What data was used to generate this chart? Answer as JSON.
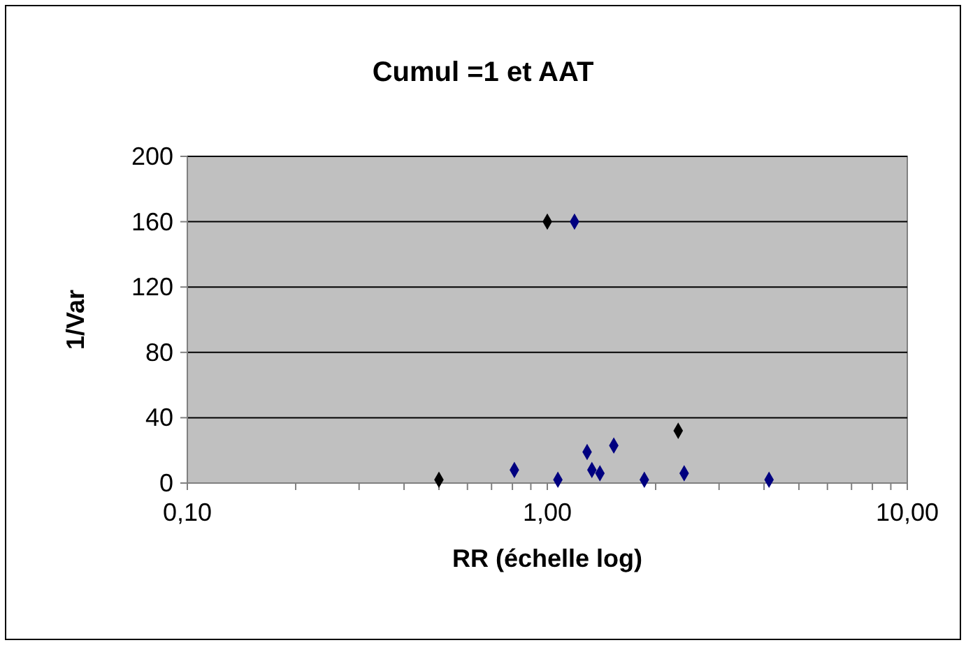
{
  "chart_data": {
    "type": "scatter",
    "title": "Cumul =1 et AAT",
    "xlabel": "RR (échelle log)",
    "ylabel": "1/Var",
    "log": "x",
    "x": [
      0.5,
      0.81,
      1.0,
      1.19,
      1.07,
      1.29,
      1.33,
      1.4,
      1.53,
      1.86,
      2.31,
      2.4,
      4.13
    ],
    "values": [
      2,
      8,
      160,
      160,
      2,
      19,
      8,
      6,
      23,
      2,
      32,
      6,
      2
    ],
    "colors": [
      "#000000",
      "#000080",
      "#000000",
      "#000080",
      "#000080",
      "#000080",
      "#000080",
      "#000080",
      "#000080",
      "#000080",
      "#000000",
      "#000080",
      "#000080"
    ],
    "marker": "diamond",
    "xlim": [
      0.1,
      10
    ],
    "xticks": [
      {
        "value": 0.1,
        "label": "0,10"
      },
      {
        "value": 0.2,
        "label": null
      },
      {
        "value": 0.3,
        "label": null
      },
      {
        "value": 0.4,
        "label": null
      },
      {
        "value": 0.5,
        "label": null
      },
      {
        "value": 0.6,
        "label": null
      },
      {
        "value": 0.7,
        "label": null
      },
      {
        "value": 0.8,
        "label": null
      },
      {
        "value": 0.9,
        "label": null
      },
      {
        "value": 1,
        "label": "1,00"
      },
      {
        "value": 2,
        "label": null
      },
      {
        "value": 3,
        "label": null
      },
      {
        "value": 4,
        "label": null
      },
      {
        "value": 5,
        "label": null
      },
      {
        "value": 6,
        "label": null
      },
      {
        "value": 7,
        "label": null
      },
      {
        "value": 8,
        "label": null
      },
      {
        "value": 9,
        "label": null
      },
      {
        "value": 10,
        "label": "10,00"
      }
    ],
    "ylim": [
      0,
      200
    ],
    "yticks": [
      0,
      40,
      80,
      120,
      160,
      200
    ],
    "grid": "y"
  }
}
